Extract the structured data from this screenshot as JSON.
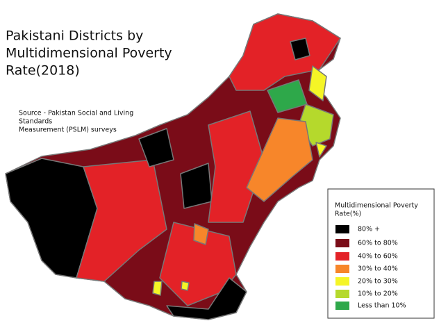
{
  "title": [
    "Pakistani Districts by",
    "Multidimensional Poverty",
    "Rate(2018)"
  ],
  "source": [
    "Source - Pakistan Social and Living",
    "Standards",
    "Measurement (PSLM) surveys"
  ],
  "legend": {
    "title": [
      "Multidimensional Poverty",
      "Rate(%)"
    ],
    "items": [
      {
        "label": "80% +",
        "color": "#000000"
      },
      {
        "label": "60% to 80%",
        "color": "#7a0c18"
      },
      {
        "label": "40% to 60%",
        "color": "#e32227"
      },
      {
        "label": "30% to 40%",
        "color": "#f7862a"
      },
      {
        "label": "20% to 30%",
        "color": "#f5f526"
      },
      {
        "label": "10% to 20%",
        "color": "#b5d92c"
      },
      {
        "label": "Less than 10%",
        "color": "#2ea84a"
      }
    ]
  }
}
